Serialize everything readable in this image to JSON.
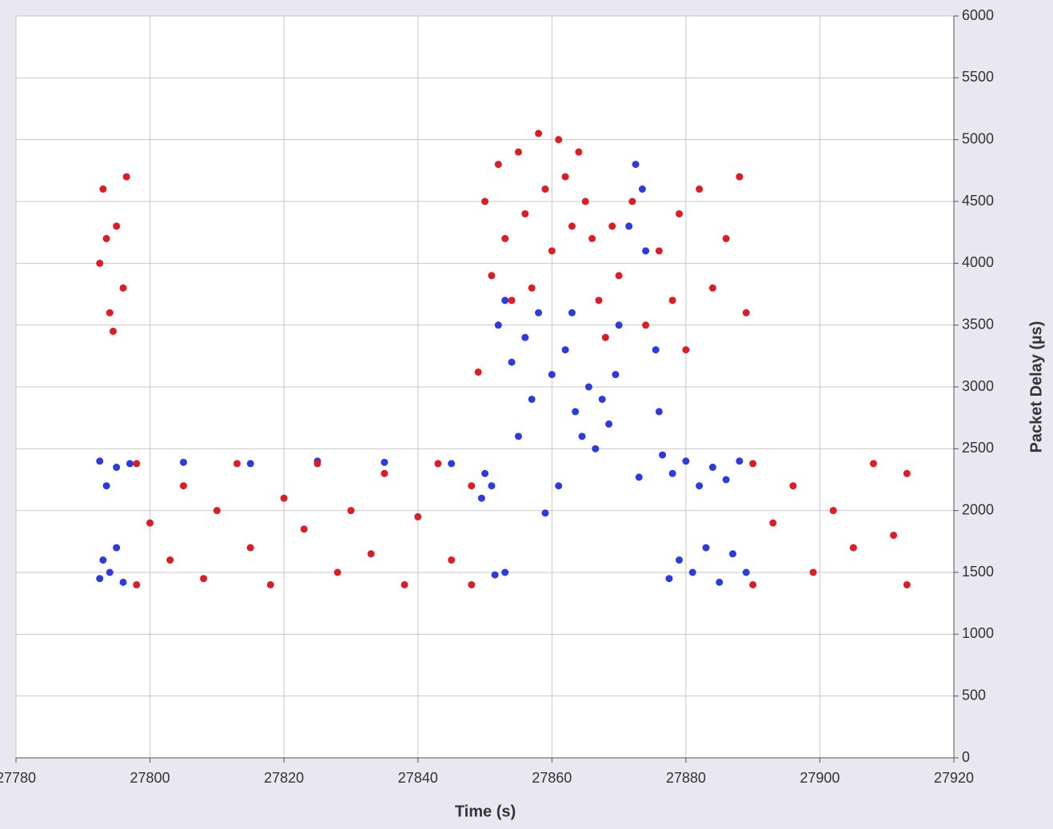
{
  "chart_data": {
    "type": "scatter",
    "xlabel": "Time (s)",
    "ylabel": "Packet Delay (µs)",
    "xlim": [
      27780,
      27920
    ],
    "xticks": [
      27780,
      27800,
      27820,
      27840,
      27860,
      27880,
      27900,
      27920
    ],
    "ylim": [
      0,
      6000
    ],
    "yticks": [
      0,
      500,
      1000,
      1500,
      2000,
      2500,
      3000,
      3500,
      4000,
      4500,
      5000,
      5500,
      6000
    ],
    "grid": true,
    "series": [
      {
        "color": "#2b3be0",
        "x": [
          27792.5,
          27793,
          27794,
          27795,
          27796,
          27792.5,
          27793.5,
          27795,
          27797,
          27805,
          27815,
          27825,
          27835,
          27845,
          27849.5,
          27850,
          27851,
          27851.5,
          27853,
          27852,
          27853,
          27854,
          27855,
          27856,
          27857,
          27858,
          27859,
          27860,
          27861,
          27862,
          27863,
          27863.5,
          27864.5,
          27865.5,
          27866.5,
          27867.5,
          27868.5,
          27869.5,
          27870,
          27871.5,
          27872.5,
          27873.5,
          27874,
          27873,
          27875.5,
          27876,
          27876.5,
          27877.5,
          27879,
          27881,
          27883,
          27885,
          27887,
          27889,
          27878,
          27880,
          27882,
          27884,
          27886,
          27888
        ],
        "values": [
          1450,
          1600,
          1500,
          1700,
          1420,
          2400,
          2200,
          2350,
          2380,
          2390,
          2380,
          2400,
          2390,
          2380,
          2100,
          2300,
          2200,
          1480,
          1500,
          3500,
          3700,
          3200,
          2600,
          3400,
          2900,
          3600,
          1980,
          3100,
          2200,
          3300,
          3600,
          2800,
          2600,
          3000,
          2500,
          2900,
          2700,
          3100,
          3500,
          4300,
          4800,
          4600,
          4100,
          2270,
          3300,
          2800,
          2450,
          1450,
          1600,
          1500,
          1700,
          1420,
          1650,
          1500,
          2300,
          2400,
          2200,
          2350,
          2250,
          2400
        ]
      },
      {
        "color": "#dd1c24",
        "x": [
          27792.5,
          27793,
          27794,
          27795,
          27796,
          27796.5,
          27794.5,
          27793.5,
          27798,
          27798,
          27800,
          27803,
          27805,
          27808,
          27810,
          27813,
          27815,
          27818,
          27820,
          27823,
          27825,
          27828,
          27830,
          27833,
          27835,
          27838,
          27840,
          27843,
          27845,
          27848,
          27848,
          27849,
          27850,
          27851,
          27852,
          27853,
          27854,
          27855,
          27856,
          27857,
          27858,
          27859,
          27860,
          27861,
          27862,
          27863,
          27864,
          27865,
          27866,
          27867,
          27868,
          27869,
          27870,
          27872,
          27874,
          27876,
          27878,
          27879,
          27880,
          27882,
          27884,
          27886,
          27888,
          27889,
          27890,
          27890,
          27893,
          27896,
          27899,
          27902,
          27905,
          27908,
          27911,
          27913,
          27913
        ],
        "values": [
          4000,
          4600,
          3600,
          4300,
          3800,
          4700,
          3450,
          4200,
          1400,
          2380,
          1900,
          1600,
          2200,
          1450,
          2000,
          2380,
          1700,
          1400,
          2100,
          1850,
          2380,
          1500,
          2000,
          1650,
          2300,
          1400,
          1950,
          2380,
          1600,
          2200,
          1400,
          3120,
          4500,
          3900,
          4800,
          4200,
          3700,
          4900,
          4400,
          3800,
          5050,
          4600,
          4100,
          5000,
          4700,
          4300,
          4900,
          4500,
          4200,
          3700,
          3400,
          4300,
          3900,
          4500,
          3500,
          4100,
          3700,
          4400,
          3300,
          4600,
          3800,
          4200,
          4700,
          3600,
          1400,
          2380,
          1900,
          2200,
          1500,
          2000,
          1700,
          2380,
          1800,
          1400,
          2300
        ]
      }
    ]
  }
}
